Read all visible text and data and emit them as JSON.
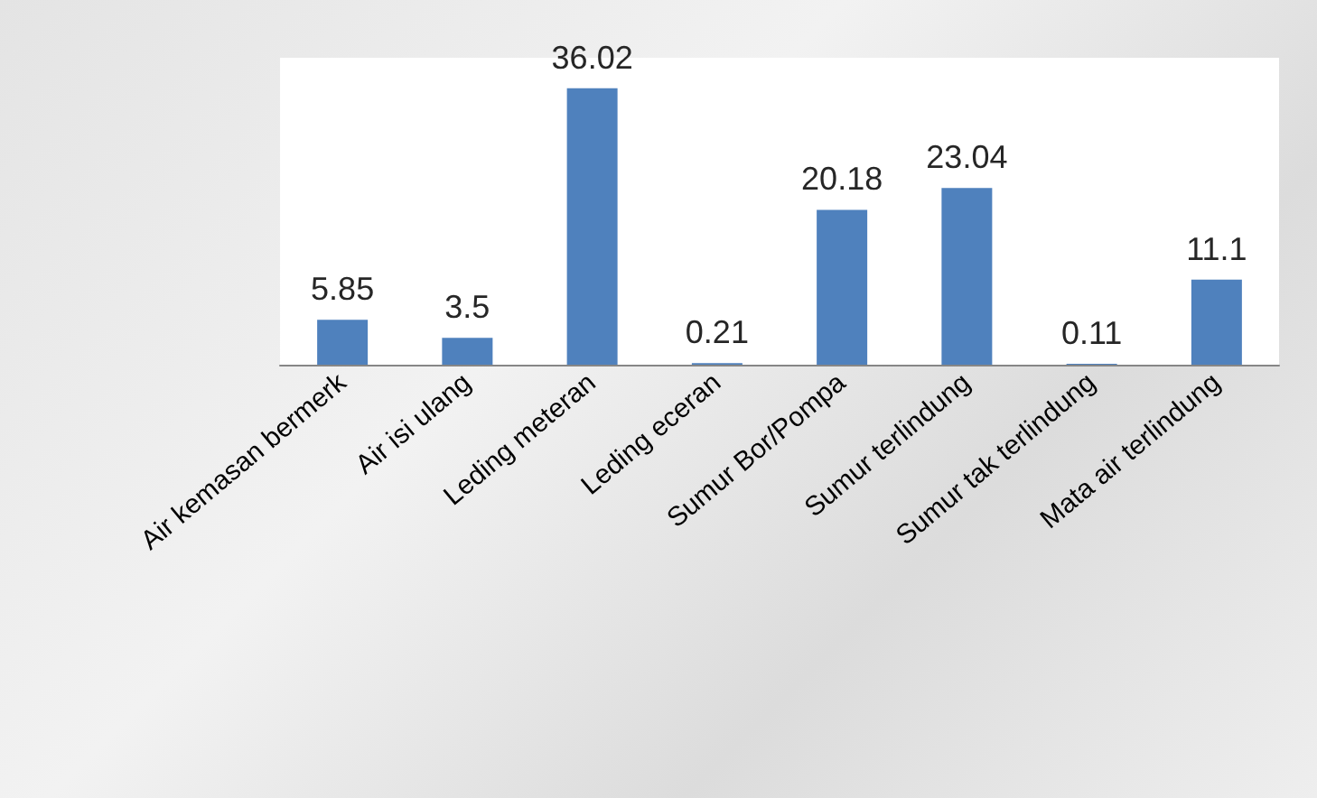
{
  "chart_data": {
    "type": "bar",
    "categories": [
      "Air kemasan bermerk",
      "Air isi ulang",
      "Leding meteran",
      "Leding eceran",
      "Sumur Bor/Pompa",
      "Sumur terlindung",
      "Sumur tak terlindung",
      "Mata air terlindung"
    ],
    "values": [
      5.85,
      3.5,
      36.02,
      0.21,
      20.18,
      23.04,
      0.11,
      11.1
    ],
    "color": "#4f81bd",
    "data_labels": true
  }
}
